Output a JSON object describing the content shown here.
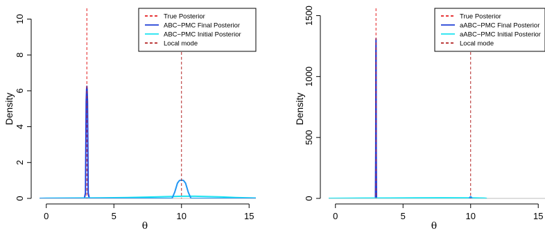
{
  "chart_data": [
    {
      "type": "line",
      "xlabel": "θ",
      "ylabel": "Density",
      "xlim": [
        -0.5,
        15.5
      ],
      "ylim": [
        0,
        10.6
      ],
      "xticks": [
        0,
        5,
        10,
        15
      ],
      "yticks": [
        0,
        2,
        4,
        6,
        8,
        10
      ],
      "legend_position": "top-right",
      "legend": [
        {
          "label": "True Posterior",
          "color": "#e41a1c",
          "style": "dashed"
        },
        {
          "label": "ABC−PMC Final Posterior",
          "color": "#1f3fd6",
          "style": "solid"
        },
        {
          "label": "ABC−PMC Initial Posterior",
          "color": "#19e3f0",
          "style": "solid"
        },
        {
          "label": "Local mode",
          "color": "#b22222",
          "style": "dashed"
        }
      ],
      "vlines": [
        {
          "x": 3,
          "color": "#e41a1c"
        },
        {
          "x": 10,
          "color": "#b22222"
        }
      ],
      "series": [
        {
          "color": "#1f3fd6",
          "x": [
            2.82,
            2.9,
            2.95,
            2.98,
            3.0,
            3.02,
            3.05,
            3.1,
            3.18
          ],
          "y": [
            0.0,
            0.3,
            5.4,
            6.1,
            6.25,
            6.1,
            5.4,
            0.3,
            0.0
          ]
        },
        {
          "color": "#19e3f0",
          "x": [
            -0.5,
            0,
            2,
            4,
            6,
            8,
            9,
            10,
            11,
            12,
            13,
            14,
            15,
            15.5
          ],
          "y": [
            0.0,
            0.01,
            0.02,
            0.03,
            0.05,
            0.08,
            0.1,
            0.12,
            0.12,
            0.1,
            0.08,
            0.05,
            0.03,
            0.02
          ]
        },
        {
          "color": "#2196f3",
          "x": [
            -0.5,
            9.3,
            9.5,
            9.7,
            9.85,
            10.0,
            10.15,
            10.3,
            10.5,
            10.7,
            15.5
          ],
          "y": [
            0.0,
            0.0,
            0.35,
            0.85,
            1.0,
            1.02,
            1.0,
            0.85,
            0.35,
            0.0,
            0.0
          ]
        }
      ]
    },
    {
      "type": "line",
      "xlabel": "θ",
      "ylabel": "Density",
      "xlim": [
        -0.5,
        15.5
      ],
      "ylim": [
        0,
        1560
      ],
      "xticks": [
        0,
        5,
        10,
        15
      ],
      "yticks": [
        0,
        500,
        1000,
        1500
      ],
      "legend_position": "top-right",
      "legend": [
        {
          "label": "True Posterior",
          "color": "#e41a1c",
          "style": "dashed"
        },
        {
          "label": "aABC−PMC Final Posterior",
          "color": "#1f3fd6",
          "style": "solid"
        },
        {
          "label": "aABC−PMC Initial Posterior",
          "color": "#19e3f0",
          "style": "solid"
        },
        {
          "label": "Local mode",
          "color": "#b22222",
          "style": "dashed"
        }
      ],
      "vlines": [
        {
          "x": 3,
          "color": "#e41a1c"
        },
        {
          "x": 10,
          "color": "#b22222"
        }
      ],
      "series": [
        {
          "color": "#1f3fd6",
          "x": [
            2.96,
            2.98,
            2.99,
            3.0,
            3.01,
            3.02,
            3.04
          ],
          "y": [
            0,
            400,
            1200,
            1310,
            1200,
            400,
            0
          ]
        },
        {
          "color": "#19e3f0",
          "x": [
            -0.5,
            2,
            4,
            6,
            8,
            10,
            11,
            11.2
          ],
          "y": [
            0,
            2,
            3,
            4,
            5,
            4,
            2,
            0
          ]
        },
        {
          "color": "#2196f3",
          "x": [
            9.9,
            9.95,
            10.0,
            10.05,
            10.1
          ],
          "y": [
            0,
            10,
            14,
            10,
            0
          ]
        }
      ]
    }
  ]
}
